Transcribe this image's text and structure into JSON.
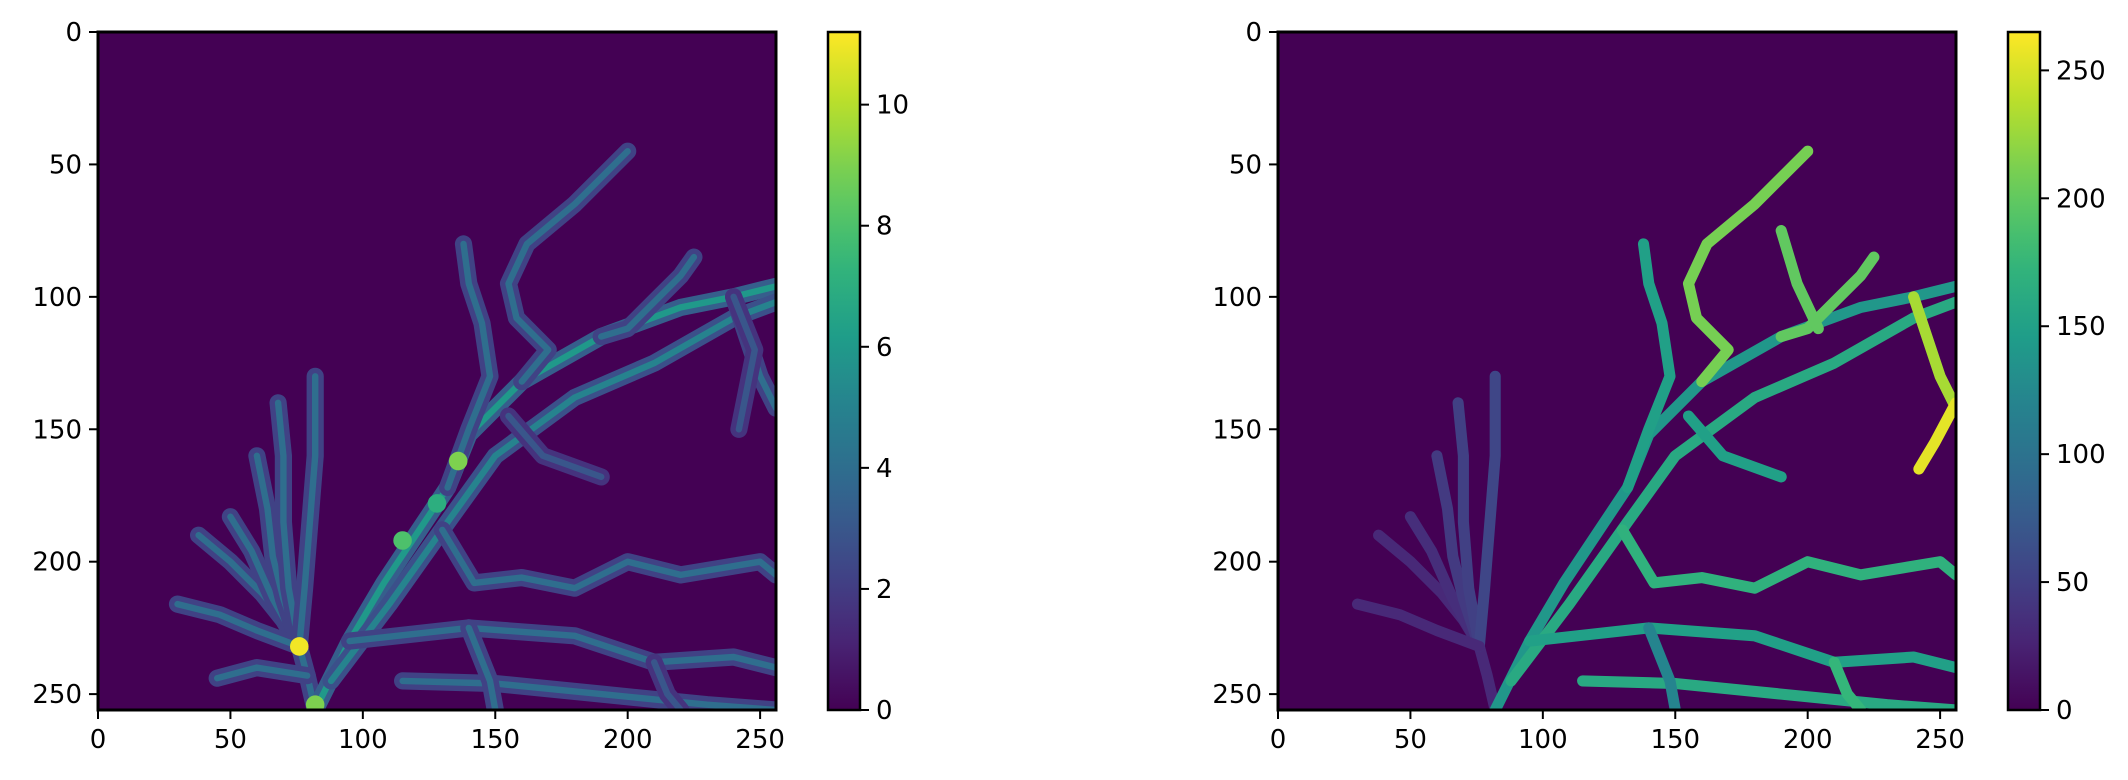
{
  "chart_data": [
    {
      "type": "heatmap",
      "title": "",
      "xlabel": "",
      "ylabel": "",
      "xlim": [
        0,
        256
      ],
      "ylim": [
        256,
        0
      ],
      "x_ticks": [
        0,
        50,
        100,
        150,
        200,
        250
      ],
      "y_ticks": [
        0,
        50,
        100,
        150,
        200,
        250
      ],
      "colormap": "viridis",
      "colorbar": {
        "min": 0,
        "max": 11.2,
        "ticks": [
          0,
          2,
          4,
          6,
          8,
          10
        ]
      },
      "background_value": 0,
      "vessels": [
        {
          "points": [
            [
              82,
              256
            ],
            [
              79,
              243
            ],
            [
              76,
              232
            ],
            [
              70,
              222
            ],
            [
              62,
              212
            ],
            [
              50,
              200
            ],
            [
              38,
              190
            ]
          ],
          "value": 4
        },
        {
          "points": [
            [
              76,
              232
            ],
            [
              66,
              214
            ],
            [
              58,
              196
            ],
            [
              50,
              183
            ]
          ],
          "value": 4
        },
        {
          "points": [
            [
              76,
              232
            ],
            [
              70,
              214
            ],
            [
              66,
              198
            ],
            [
              64,
              180
            ],
            [
              60,
              160
            ]
          ],
          "value": 4
        },
        {
          "points": [
            [
              76,
              232
            ],
            [
              72,
              210
            ],
            [
              70,
              185
            ],
            [
              70,
              160
            ],
            [
              68,
              140
            ]
          ],
          "value": 4
        },
        {
          "points": [
            [
              76,
              232
            ],
            [
              78,
              210
            ],
            [
              80,
              185
            ],
            [
              82,
              160
            ],
            [
              82,
              130
            ]
          ],
          "value": 4
        },
        {
          "points": [
            [
              76,
              232
            ],
            [
              60,
              226
            ],
            [
              46,
              220
            ],
            [
              30,
              216
            ]
          ],
          "value": 4
        },
        {
          "points": [
            [
              79,
              243
            ],
            [
              60,
              240
            ],
            [
              45,
              244
            ]
          ],
          "value": 4
        },
        {
          "points": [
            [
              82,
              256
            ],
            [
              95,
              230
            ],
            [
              108,
              208
            ],
            [
              120,
              190
            ],
            [
              132,
              172
            ],
            [
              140,
              152
            ],
            [
              160,
              132
            ],
            [
              190,
              115
            ],
            [
              220,
              104
            ],
            [
              240,
              100
            ],
            [
              256,
              96
            ]
          ],
          "value": 6
        },
        {
          "points": [
            [
              88,
              245
            ],
            [
              110,
              216
            ],
            [
              132,
              185
            ],
            [
              150,
              160
            ],
            [
              180,
              138
            ],
            [
              210,
              125
            ],
            [
              240,
              108
            ],
            [
              256,
              102
            ]
          ],
          "value": 5
        },
        {
          "points": [
            [
              132,
              172
            ],
            [
              140,
              150
            ],
            [
              148,
              130
            ],
            [
              145,
              110
            ],
            [
              140,
              95
            ],
            [
              138,
              80
            ]
          ],
          "value": 4
        },
        {
          "points": [
            [
              160,
              132
            ],
            [
              170,
              120
            ],
            [
              158,
              108
            ],
            [
              155,
              95
            ],
            [
              162,
              80
            ],
            [
              180,
              65
            ],
            [
              200,
              45
            ]
          ],
          "value": 4
        },
        {
          "points": [
            [
              190,
              115
            ],
            [
              200,
              112
            ],
            [
              210,
              102
            ],
            [
              220,
              92
            ],
            [
              225,
              85
            ]
          ],
          "value": 4
        },
        {
          "points": [
            [
              240,
              100
            ],
            [
              250,
              130
            ],
            [
              256,
              142
            ]
          ],
          "value": 4
        },
        {
          "points": [
            [
              240,
              100
            ],
            [
              248,
              120
            ],
            [
              242,
              150
            ]
          ],
          "value": 3
        },
        {
          "points": [
            [
              155,
              145
            ],
            [
              168,
              160
            ],
            [
              190,
              168
            ]
          ],
          "value": 3
        },
        {
          "points": [
            [
              130,
              188
            ],
            [
              142,
              208
            ],
            [
              160,
              206
            ],
            [
              180,
              210
            ],
            [
              200,
              200
            ],
            [
              220,
              205
            ],
            [
              250,
              200
            ],
            [
              256,
              205
            ]
          ],
          "value": 4
        },
        {
          "points": [
            [
              95,
              230
            ],
            [
              140,
              225
            ],
            [
              180,
              228
            ],
            [
              210,
              238
            ],
            [
              240,
              236
            ],
            [
              256,
              240
            ]
          ],
          "value": 4
        },
        {
          "points": [
            [
              115,
              245
            ],
            [
              150,
              246
            ],
            [
              190,
              250
            ],
            [
              230,
              254
            ],
            [
              256,
              256
            ]
          ],
          "value": 4
        },
        {
          "points": [
            [
              140,
              225
            ],
            [
              148,
              245
            ],
            [
              150,
              256
            ]
          ],
          "value": 4
        },
        {
          "points": [
            [
              210,
              238
            ],
            [
              215,
              250
            ],
            [
              220,
              256
            ]
          ],
          "value": 3
        }
      ]
    },
    {
      "type": "heatmap",
      "title": "",
      "xlabel": "",
      "ylabel": "",
      "xlim": [
        0,
        256
      ],
      "ylim": [
        256,
        0
      ],
      "x_ticks": [
        0,
        50,
        100,
        150,
        200,
        250
      ],
      "y_ticks": [
        0,
        50,
        100,
        150,
        200,
        250
      ],
      "colormap": "viridis",
      "colorbar": {
        "min": 0,
        "max": 265,
        "ticks": [
          0,
          50,
          100,
          150,
          200,
          250
        ]
      },
      "background_value": 0,
      "vessels": [
        {
          "points": [
            [
              82,
              256
            ],
            [
              79,
              243
            ],
            [
              76,
              232
            ],
            [
              70,
              222
            ],
            [
              62,
              212
            ],
            [
              50,
              200
            ],
            [
              38,
              190
            ]
          ],
          "value": 30
        },
        {
          "points": [
            [
              76,
              232
            ],
            [
              66,
              214
            ],
            [
              58,
              196
            ],
            [
              50,
              183
            ]
          ],
          "value": 35
        },
        {
          "points": [
            [
              76,
              232
            ],
            [
              70,
              214
            ],
            [
              66,
              198
            ],
            [
              64,
              180
            ],
            [
              60,
              160
            ]
          ],
          "value": 45
        },
        {
          "points": [
            [
              76,
              232
            ],
            [
              72,
              210
            ],
            [
              70,
              185
            ],
            [
              70,
              160
            ],
            [
              68,
              140
            ]
          ],
          "value": 50
        },
        {
          "points": [
            [
              76,
              232
            ],
            [
              78,
              210
            ],
            [
              80,
              185
            ],
            [
              82,
              160
            ],
            [
              82,
              130
            ]
          ],
          "value": 55
        },
        {
          "points": [
            [
              76,
              232
            ],
            [
              60,
              226
            ],
            [
              46,
              220
            ],
            [
              30,
              216
            ]
          ],
          "value": 30
        },
        {
          "points": [
            [
              82,
              256
            ],
            [
              95,
              230
            ],
            [
              108,
              208
            ],
            [
              120,
              190
            ],
            [
              132,
              172
            ],
            [
              140,
              152
            ],
            [
              160,
              132
            ],
            [
              190,
              115
            ],
            [
              220,
              104
            ],
            [
              240,
              100
            ],
            [
              256,
              96
            ]
          ],
          "value": 140
        },
        {
          "points": [
            [
              88,
              245
            ],
            [
              110,
              216
            ],
            [
              132,
              185
            ],
            [
              150,
              160
            ],
            [
              180,
              138
            ],
            [
              210,
              125
            ],
            [
              240,
              108
            ],
            [
              256,
              102
            ]
          ],
          "value": 160
        },
        {
          "points": [
            [
              132,
              172
            ],
            [
              140,
              150
            ],
            [
              148,
              130
            ],
            [
              145,
              110
            ],
            [
              140,
              95
            ],
            [
              138,
              80
            ]
          ],
          "value": 150
        },
        {
          "points": [
            [
              160,
              132
            ],
            [
              170,
              120
            ],
            [
              158,
              108
            ],
            [
              155,
              95
            ],
            [
              162,
              80
            ],
            [
              180,
              65
            ],
            [
              200,
              45
            ]
          ],
          "value": 210
        },
        {
          "points": [
            [
              190,
              115
            ],
            [
              200,
              112
            ],
            [
              210,
              102
            ],
            [
              220,
              92
            ],
            [
              225,
              85
            ]
          ],
          "value": 200
        },
        {
          "points": [
            [
              240,
              100
            ],
            [
              250,
              130
            ],
            [
              256,
              142
            ]
          ],
          "value": 230
        },
        {
          "points": [
            [
              155,
              145
            ],
            [
              168,
              160
            ],
            [
              190,
              168
            ]
          ],
          "value": 150
        },
        {
          "points": [
            [
              130,
              188
            ],
            [
              142,
              208
            ],
            [
              160,
              206
            ],
            [
              180,
              210
            ],
            [
              200,
              200
            ],
            [
              220,
              205
            ],
            [
              250,
              200
            ],
            [
              256,
              205
            ]
          ],
          "value": 170
        },
        {
          "points": [
            [
              95,
              230
            ],
            [
              140,
              225
            ],
            [
              180,
              228
            ],
            [
              210,
              238
            ],
            [
              240,
              236
            ],
            [
              256,
              240
            ]
          ],
          "value": 150
        },
        {
          "points": [
            [
              115,
              245
            ],
            [
              150,
              246
            ],
            [
              190,
              250
            ],
            [
              230,
              254
            ],
            [
              256,
              256
            ]
          ],
          "value": 160
        },
        {
          "points": [
            [
              140,
              225
            ],
            [
              148,
              245
            ],
            [
              150,
              256
            ]
          ],
          "value": 120
        },
        {
          "points": [
            [
              210,
              238
            ],
            [
              215,
              250
            ],
            [
              220,
              256
            ]
          ],
          "value": 175
        },
        {
          "points": [
            [
              190,
              75
            ],
            [
              196,
              95
            ],
            [
              204,
              112
            ]
          ],
          "value": 200
        },
        {
          "points": [
            [
              256,
              140
            ],
            [
              248,
              155
            ],
            [
              242,
              165
            ]
          ],
          "value": 255
        }
      ]
    }
  ]
}
